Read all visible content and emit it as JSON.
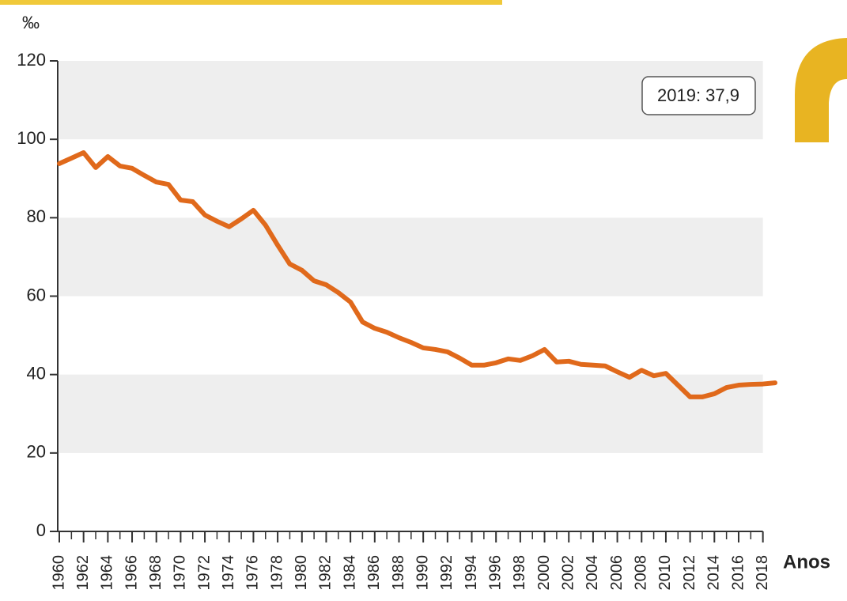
{
  "chart_data": {
    "type": "line",
    "y_label": "‰",
    "x_label": "Anos",
    "annotation": "2019: 37,9",
    "x": [
      1960,
      1961,
      1962,
      1963,
      1964,
      1965,
      1966,
      1967,
      1968,
      1969,
      1970,
      1971,
      1972,
      1973,
      1974,
      1975,
      1976,
      1977,
      1978,
      1979,
      1980,
      1981,
      1982,
      1983,
      1984,
      1985,
      1986,
      1987,
      1988,
      1989,
      1990,
      1991,
      1992,
      1993,
      1994,
      1995,
      1996,
      1997,
      1998,
      1999,
      2000,
      2001,
      2002,
      2003,
      2004,
      2005,
      2006,
      2007,
      2008,
      2009,
      2010,
      2011,
      2012,
      2013,
      2014,
      2015,
      2016,
      2017,
      2018,
      2019
    ],
    "series": [
      {
        "name": null,
        "color": "#e0691b",
        "values": [
          93.8,
          95.2,
          96.6,
          92.8,
          95.6,
          93.2,
          92.6,
          90.8,
          89.1,
          88.5,
          84.5,
          84.1,
          80.7,
          79.1,
          77.7,
          79.7,
          81.9,
          78.1,
          73.0,
          68.2,
          66.6,
          63.9,
          62.9,
          60.9,
          58.5,
          53.4,
          51.8,
          50.8,
          49.4,
          48.2,
          46.8,
          46.4,
          45.8,
          44.2,
          42.4,
          42.4,
          43.0,
          44.0,
          43.6,
          44.8,
          46.4,
          43.2,
          43.4,
          42.6,
          42.4,
          42.2,
          40.7,
          39.3,
          41.1,
          39.7,
          40.3,
          37.3,
          34.3,
          34.3,
          35.1,
          36.7,
          37.3,
          37.5,
          37.6,
          37.9
        ]
      }
    ],
    "xlim": [
      1960,
      2019
    ],
    "xticks": [
      1960,
      1962,
      1964,
      1966,
      1968,
      1970,
      1972,
      1974,
      1976,
      1978,
      1980,
      1982,
      1984,
      1986,
      1988,
      1990,
      1992,
      1994,
      1996,
      1998,
      2000,
      2002,
      2004,
      2006,
      2008,
      2010,
      2012,
      2014,
      2016,
      2018
    ],
    "ylim": [
      0,
      120
    ],
    "yticks": [
      0,
      20,
      40,
      60,
      80,
      100,
      120
    ],
    "grid_bands": true
  }
}
